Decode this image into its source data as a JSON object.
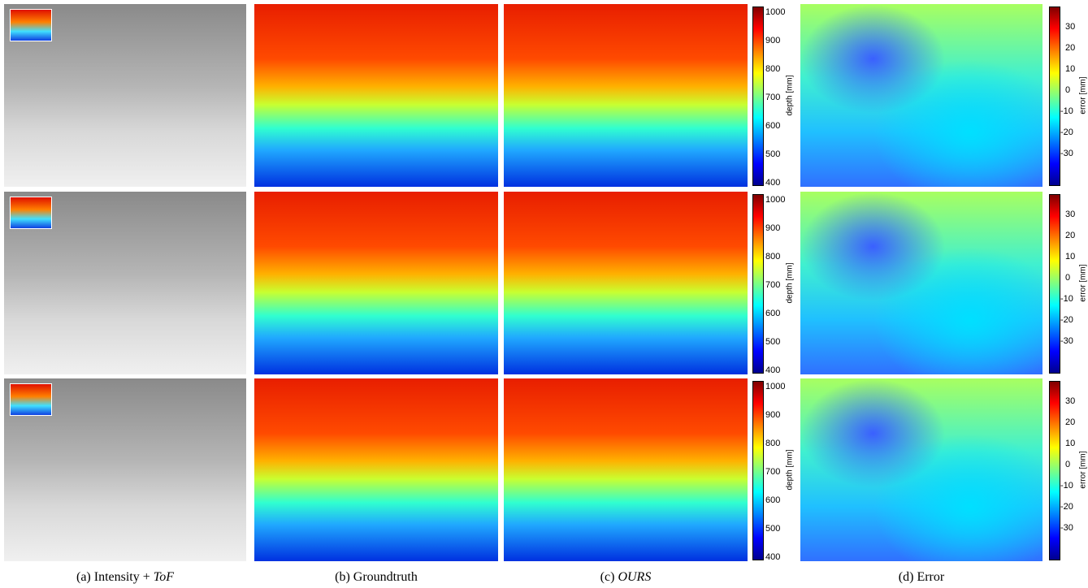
{
  "rows": [
    {
      "depth_colorbar": {
        "label": "depth [mm]",
        "ticks": [
          1000,
          900,
          800,
          700,
          600,
          500,
          400
        ]
      },
      "error_colorbar": {
        "label": "error [mm]",
        "ticks": [
          30,
          20,
          10,
          0,
          -10,
          -20,
          -30
        ]
      }
    },
    {
      "depth_colorbar": {
        "label": "depth [mm]",
        "ticks": [
          1000,
          900,
          800,
          700,
          600,
          500,
          400
        ]
      },
      "error_colorbar": {
        "label": "error [mm]",
        "ticks": [
          30,
          20,
          10,
          0,
          -10,
          -20,
          -30
        ]
      }
    },
    {
      "depth_colorbar": {
        "label": "depth [mm]",
        "ticks": [
          1000,
          900,
          800,
          700,
          600,
          500,
          400
        ]
      },
      "error_colorbar": {
        "label": "error [mm]",
        "ticks": [
          30,
          20,
          10,
          0,
          -10,
          -20,
          -30
        ]
      }
    }
  ],
  "captions": [
    {
      "prefix": "(a) Intensity +",
      "italic": "ToF"
    },
    {
      "text": "(b) Groundtruth"
    },
    {
      "prefix": "(c)",
      "italic": "OURS"
    },
    {
      "text": "(d) Error"
    }
  ]
}
